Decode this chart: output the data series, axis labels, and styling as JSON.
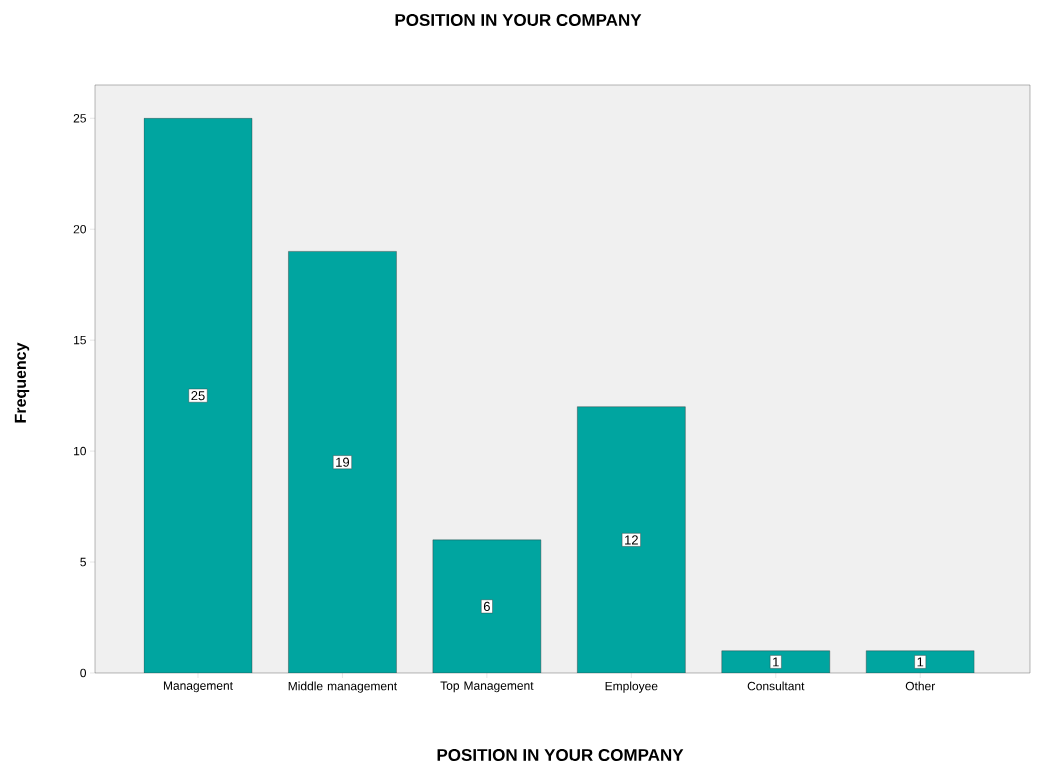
{
  "chart_data": {
    "type": "bar",
    "title": "POSITION IN YOUR COMPANY",
    "xlabel": "POSITION IN YOUR COMPANY",
    "ylabel": "Frequency",
    "categories": [
      "Management",
      "Middle management",
      "Top Management",
      "Employee",
      "Consultant",
      "Other"
    ],
    "values": [
      25,
      19,
      6,
      12,
      1,
      1
    ],
    "color": "#00a5a0",
    "ylim": [
      0,
      26.5
    ],
    "yticks": [
      0,
      5,
      10,
      15,
      20,
      25
    ],
    "data_labels": true,
    "grid": false
  }
}
